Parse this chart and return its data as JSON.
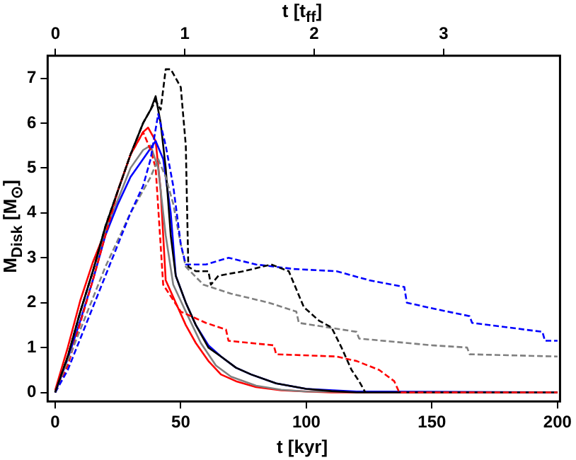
{
  "chart_data": {
    "type": "line",
    "xlabel": "t [kyr]",
    "ylabel": "M$_{Disk}$ [M$_{⊙}$]",
    "x2label": "t [t$_{ff}$]",
    "xlim": [
      -3,
      201
    ],
    "xticks": [
      0,
      50,
      100,
      150,
      200
    ],
    "ylim": [
      -0.2,
      7.5
    ],
    "yticks": [
      0,
      1,
      2,
      3,
      4,
      5,
      6,
      7
    ],
    "x2lim": [
      -0.06,
      3.9
    ],
    "x2ticks": [
      0,
      1,
      2,
      3
    ],
    "grid": false,
    "legend": false,
    "marker": "none",
    "series": [
      {
        "color": "#000000",
        "line_style": "solid",
        "x": [
          0,
          5,
          10,
          15,
          20,
          25,
          30,
          35,
          38,
          40,
          42,
          44,
          46,
          48,
          52,
          56,
          61,
          66,
          72,
          78,
          88,
          100,
          110,
          120,
          200
        ],
        "values": [
          0,
          0.8,
          1.8,
          2.7,
          3.7,
          4.5,
          5.3,
          6.0,
          6.3,
          6.6,
          6.0,
          5.0,
          3.5,
          2.6,
          2.0,
          1.5,
          1.0,
          0.8,
          0.55,
          0.4,
          0.2,
          0.08,
          0.03,
          0,
          0
        ]
      },
      {
        "color": "#0000ff",
        "line_style": "solid",
        "x": [
          0,
          5,
          10,
          15,
          20,
          25,
          30,
          35,
          40,
          43,
          46,
          48,
          52,
          56,
          61,
          66,
          72,
          78,
          88,
          100,
          120,
          200
        ],
        "values": [
          0,
          0.75,
          1.6,
          2.5,
          3.5,
          4.2,
          4.8,
          5.2,
          5.6,
          5.2,
          4.0,
          2.6,
          2.0,
          1.5,
          1.05,
          0.8,
          0.55,
          0.4,
          0.2,
          0.08,
          0.02,
          0
        ]
      },
      {
        "color": "#808080",
        "line_style": "solid",
        "x": [
          0,
          5,
          10,
          15,
          20,
          25,
          30,
          35,
          38,
          41,
          44,
          47,
          52,
          58,
          64,
          70,
          80,
          90,
          100,
          200
        ],
        "values": [
          0,
          0.8,
          1.8,
          2.7,
          3.6,
          4.3,
          5.0,
          5.4,
          5.5,
          5.0,
          3.5,
          2.4,
          1.8,
          1.1,
          0.6,
          0.35,
          0.15,
          0.06,
          0.02,
          0
        ]
      },
      {
        "color": "#ff0000",
        "line_style": "solid",
        "x": [
          0,
          5,
          10,
          15,
          20,
          25,
          30,
          35,
          37,
          40,
          42,
          44,
          48,
          52,
          56,
          61,
          66,
          72,
          80,
          90,
          100,
          110,
          200
        ],
        "values": [
          0.05,
          1.0,
          2.05,
          2.9,
          3.6,
          4.5,
          5.3,
          5.8,
          5.9,
          5.6,
          4.5,
          2.5,
          2.0,
          1.5,
          1.1,
          0.7,
          0.4,
          0.25,
          0.12,
          0.05,
          0.02,
          0,
          0
        ]
      },
      {
        "color": "#000000",
        "line_style": "dashed",
        "x": [
          0,
          5,
          10,
          15,
          20,
          25,
          30,
          35,
          38,
          40,
          42,
          44,
          46,
          48,
          50,
          52,
          53,
          56,
          61,
          62,
          65,
          75,
          86,
          93,
          99,
          105,
          110,
          114,
          118,
          121,
          123.5
        ],
        "values": [
          0,
          0.8,
          1.8,
          2.7,
          3.7,
          4.5,
          5.3,
          6.0,
          6.3,
          6.5,
          6.3,
          7.2,
          7.2,
          7.0,
          6.8,
          5.5,
          2.8,
          2.7,
          2.7,
          2.4,
          2.6,
          2.7,
          2.85,
          2.7,
          1.9,
          1.6,
          1.45,
          1.0,
          0.5,
          0.25,
          0
        ]
      },
      {
        "color": "#0000ff",
        "line_style": "dashed",
        "x": [
          0,
          5,
          10,
          15,
          20,
          25,
          30,
          35,
          38,
          41,
          44,
          47,
          50,
          52,
          60,
          69,
          80,
          95,
          112,
          125,
          139,
          140,
          152,
          165,
          166,
          180,
          194,
          195,
          200
        ],
        "values": [
          0,
          0.5,
          1.2,
          1.9,
          2.6,
          3.3,
          4.0,
          4.6,
          5.2,
          6.2,
          5.5,
          4.6,
          3.3,
          2.85,
          2.85,
          3.0,
          2.85,
          2.75,
          2.7,
          2.5,
          2.35,
          2.0,
          1.85,
          1.7,
          1.55,
          1.45,
          1.35,
          1.15,
          1.15
        ]
      },
      {
        "color": "#808080",
        "line_style": "dashed",
        "x": [
          0,
          5,
          10,
          15,
          20,
          25,
          30,
          35,
          38,
          41,
          44,
          47,
          50,
          52,
          59,
          70,
          85,
          96,
          97,
          120,
          121,
          150,
          164,
          165,
          200
        ],
        "values": [
          0,
          0.7,
          1.4,
          2.1,
          2.8,
          3.4,
          4.0,
          4.5,
          4.8,
          5.2,
          4.8,
          4.2,
          3.3,
          2.8,
          2.4,
          2.2,
          2.0,
          1.8,
          1.55,
          1.35,
          1.2,
          1.05,
          1.0,
          0.85,
          0.8
        ]
      },
      {
        "color": "#ff0000",
        "line_style": "dashed",
        "x": [
          0,
          5,
          10,
          15,
          20,
          25,
          30,
          35,
          38,
          40,
          43,
          50,
          60,
          68,
          69,
          87,
          88,
          112,
          120,
          129,
          135,
          137,
          200
        ],
        "values": [
          0,
          0.6,
          1.55,
          2.5,
          3.5,
          4.5,
          5.3,
          5.8,
          5.4,
          5.0,
          2.4,
          1.8,
          1.55,
          1.4,
          1.15,
          1.05,
          0.85,
          0.8,
          0.7,
          0.5,
          0.25,
          0,
          0
        ]
      }
    ]
  }
}
